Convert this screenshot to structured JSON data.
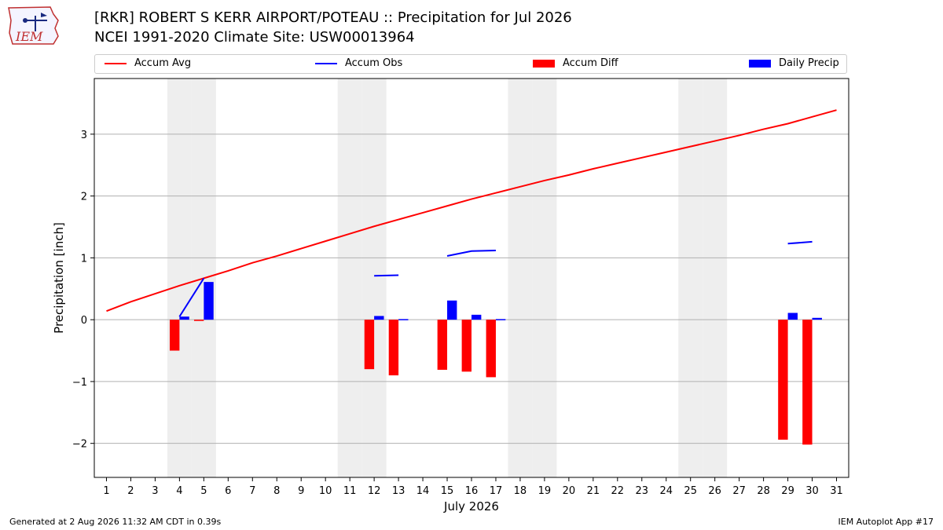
{
  "header": {
    "title_line1": "[RKR] ROBERT S KERR AIRPORT/POTEAU :: Precipitation for Jul 2026",
    "title_line2": "NCEI 1991-2020 Climate Site: USW00013964",
    "logo_text": "IEM"
  },
  "footer": {
    "generated": "Generated at 2 Aug 2026 11:32 AM CDT in 0.39s",
    "app": "IEM Autoplot App #17"
  },
  "colors": {
    "accum_avg": "#ff0000",
    "accum_obs": "#0000ff",
    "accum_diff": "#ff0000",
    "daily_precip": "#0000ff",
    "weekend_shade": "#eeeeee",
    "grid": "#b0b0b0"
  },
  "chart_data": {
    "type": "bar",
    "xlabel": "July 2026",
    "ylabel": "Precipitation [inch]",
    "x": [
      1,
      2,
      3,
      4,
      5,
      6,
      7,
      8,
      9,
      10,
      11,
      12,
      13,
      14,
      15,
      16,
      17,
      18,
      19,
      20,
      21,
      22,
      23,
      24,
      25,
      26,
      27,
      28,
      29,
      30,
      31
    ],
    "xlim": [
      0.5,
      31.5
    ],
    "ylim": [
      -2.55,
      3.9
    ],
    "yticks": [
      -2,
      -1,
      0,
      1,
      2,
      3
    ],
    "ytick_labels": [
      "−2",
      "−1",
      "0",
      "1",
      "2",
      "3"
    ],
    "grid": "horizontal",
    "legend_placement": "top",
    "weekend_days": [
      4,
      5,
      11,
      12,
      18,
      19,
      25,
      26
    ],
    "legend": [
      {
        "name": "Accum Avg",
        "kind": "line",
        "color_key": "accum_avg"
      },
      {
        "name": "Accum Obs",
        "kind": "line",
        "color_key": "accum_obs"
      },
      {
        "name": "Accum Diff",
        "kind": "bar",
        "color_key": "accum_diff"
      },
      {
        "name": "Daily Precip",
        "kind": "bar",
        "color_key": "daily_precip"
      }
    ],
    "series": [
      {
        "name": "Accum Avg",
        "type": "line",
        "x": [
          1,
          2,
          3,
          4,
          5,
          6,
          7,
          8,
          9,
          10,
          11,
          12,
          13,
          14,
          15,
          16,
          17,
          18,
          19,
          20,
          21,
          22,
          23,
          24,
          25,
          26,
          27,
          28,
          29,
          30,
          31
        ],
        "values": [
          0.14,
          0.29,
          0.42,
          0.55,
          0.67,
          0.79,
          0.92,
          1.03,
          1.15,
          1.27,
          1.39,
          1.51,
          1.62,
          1.73,
          1.84,
          1.95,
          2.05,
          2.15,
          2.25,
          2.34,
          2.44,
          2.53,
          2.62,
          2.71,
          2.8,
          2.89,
          2.98,
          3.08,
          3.17,
          3.28,
          3.39
        ]
      },
      {
        "name": "Accum Obs",
        "type": "line",
        "segments": [
          {
            "x": [
              4,
              5
            ],
            "values": [
              0.05,
              0.67
            ]
          },
          {
            "x": [
              12,
              13
            ],
            "values": [
              0.71,
              0.72
            ]
          },
          {
            "x": [
              15,
              16,
              17
            ],
            "values": [
              1.03,
              1.11,
              1.12
            ]
          },
          {
            "x": [
              29,
              30
            ],
            "values": [
              1.23,
              1.26
            ]
          }
        ]
      },
      {
        "name": "Accum Diff",
        "type": "bar",
        "x": [
          4,
          5,
          12,
          13,
          15,
          16,
          17,
          29,
          30
        ],
        "values": [
          -0.5,
          -0.02,
          -0.8,
          -0.9,
          -0.81,
          -0.84,
          -0.93,
          -1.94,
          -2.02
        ]
      },
      {
        "name": "Daily Precip",
        "type": "bar",
        "x": [
          4,
          5,
          12,
          13,
          15,
          16,
          17,
          29,
          30
        ],
        "values": [
          0.05,
          0.61,
          0.06,
          0.01,
          0.31,
          0.08,
          0.01,
          0.11,
          0.03
        ]
      }
    ]
  }
}
